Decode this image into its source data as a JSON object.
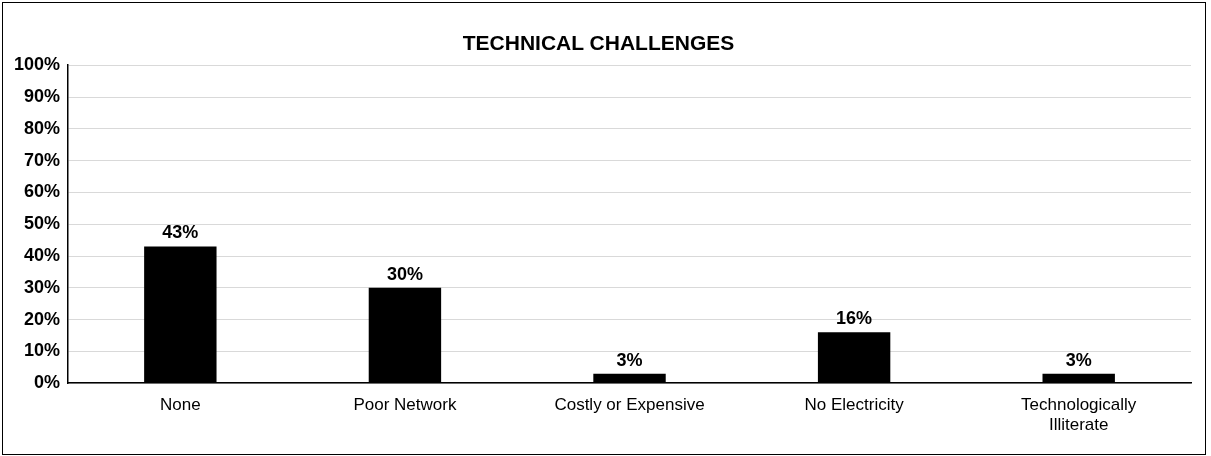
{
  "chart_data": {
    "type": "bar",
    "title": "TECHNICAL CHALLENGES",
    "categories": [
      "None",
      "Poor Network",
      "Costly or Expensive",
      "No Electricity",
      "Technologically Illiterate"
    ],
    "values": [
      43,
      30,
      3,
      16,
      3
    ],
    "value_labels": [
      "43%",
      "30%",
      "3%",
      "16%",
      "3%"
    ],
    "color": "#000000",
    "ylim": [
      0,
      100
    ],
    "yticks": [
      {
        "value": 0,
        "label": "0%"
      },
      {
        "value": 10,
        "label": "10%"
      },
      {
        "value": 20,
        "label": "20%"
      },
      {
        "value": 30,
        "label": "30%"
      },
      {
        "value": 40,
        "label": "40%"
      },
      {
        "value": 50,
        "label": "50%"
      },
      {
        "value": 60,
        "label": "60%"
      },
      {
        "value": 70,
        "label": "70%"
      },
      {
        "value": 80,
        "label": "80%"
      },
      {
        "value": 90,
        "label": "90%"
      },
      {
        "value": 100,
        "label": "100%"
      }
    ],
    "grid": "y",
    "legend": false
  }
}
